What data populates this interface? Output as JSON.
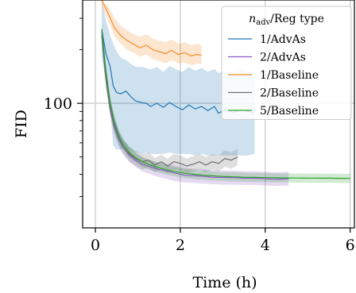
{
  "chart_data": {
    "type": "line",
    "xlabel": "Time (h)",
    "ylabel": "FID",
    "xlim": [
      -0.3,
      6.1
    ],
    "ylim": [
      20,
      380
    ],
    "yscale": "log",
    "xticks": [
      0,
      2,
      4,
      6
    ],
    "xtick_labels": [
      "0",
      "2",
      "4",
      "6"
    ],
    "yticks": [
      100
    ],
    "ytick_labels": [
      "100"
    ],
    "grid": true,
    "legend": {
      "placement": "top-right",
      "title_var": "n",
      "title_sub": "adv",
      "title_rest": "/Reg type"
    },
    "series": [
      {
        "name": "1/AdvAs",
        "color": "#1f77b4",
        "x": [
          0.15,
          0.25,
          0.35,
          0.42,
          0.5,
          0.6,
          0.72,
          0.85,
          0.95,
          1.1,
          1.2,
          1.3,
          1.45,
          1.6,
          1.75,
          1.9,
          2.05,
          2.2,
          2.35,
          2.5,
          2.65,
          2.8,
          2.9,
          3.05,
          3.25,
          3.45,
          3.6,
          3.75
        ],
        "y": [
          260,
          190,
          160,
          125,
          115,
          113,
          117,
          108,
          103,
          101,
          100,
          96,
          100,
          95,
          101,
          96,
          92,
          98,
          93,
          96,
          91,
          96,
          88,
          92,
          89,
          92,
          90,
          88
        ],
        "lower": [
          180,
          130,
          90,
          58,
          55,
          55,
          56,
          54,
          53,
          52,
          53,
          52,
          52,
          52,
          53,
          52,
          52,
          52,
          51,
          52,
          51,
          51,
          51,
          51,
          51,
          51,
          51,
          52
        ],
        "upper": [
          380,
          290,
          240,
          215,
          195,
          180,
          175,
          165,
          160,
          160,
          158,
          155,
          160,
          150,
          162,
          155,
          150,
          160,
          152,
          158,
          150,
          156,
          148,
          152,
          148,
          155,
          150,
          150
        ]
      },
      {
        "name": "2/AdvAs",
        "color": "#8c57c9",
        "x": [
          0.15,
          0.25,
          0.35,
          0.45,
          0.55,
          0.65,
          0.8,
          0.95,
          1.1,
          1.3,
          1.5,
          1.7,
          1.9,
          2.1,
          2.3,
          2.5,
          2.75,
          3.0,
          3.25,
          3.5,
          3.75,
          4.0,
          4.2,
          4.4,
          4.55
        ],
        "y": [
          250,
          140,
          95,
          75,
          64,
          57,
          51,
          48,
          45.5,
          44,
          42.5,
          41.5,
          40.5,
          39.5,
          39.3,
          39,
          38.5,
          38.4,
          38.3,
          38,
          38,
          37.8,
          37.5,
          37.6,
          37.7
        ],
        "lower": [
          220,
          125,
          86,
          68,
          58,
          52,
          47,
          44,
          41.5,
          40,
          38.5,
          37.5,
          36.5,
          36,
          35.8,
          35.5,
          35.2,
          35,
          35,
          34.8,
          34.8,
          34.6,
          34.4,
          34.5,
          34.6
        ],
        "upper": [
          290,
          160,
          108,
          84,
          71,
          63,
          56,
          52.5,
          50,
          48,
          46.5,
          45.5,
          44.5,
          43.5,
          43,
          42.8,
          42.2,
          42,
          42,
          41.6,
          41.6,
          41.3,
          41,
          41.2,
          41.3
        ]
      },
      {
        "name": "1/Baseline",
        "color": "#f28e2b",
        "x": [
          0.15,
          0.3,
          0.45,
          0.6,
          0.75,
          0.9,
          1.05,
          1.2,
          1.35,
          1.5,
          1.65,
          1.8,
          1.95,
          2.1,
          2.25,
          2.4,
          2.5
        ],
        "y": [
          380,
          320,
          265,
          240,
          225,
          215,
          205,
          212,
          200,
          195,
          190,
          198,
          188,
          192,
          185,
          188,
          186
        ],
        "lower": [
          350,
          290,
          238,
          215,
          200,
          192,
          183,
          188,
          178,
          173,
          168,
          175,
          167,
          170,
          164,
          167,
          165
        ],
        "upper": [
          380,
          352,
          300,
          272,
          256,
          245,
          236,
          244,
          230,
          225,
          220,
          228,
          216,
          220,
          212,
          216,
          212
        ]
      },
      {
        "name": "2/Baseline",
        "color": "#6e6e6e",
        "x": [
          0.15,
          0.25,
          0.35,
          0.45,
          0.55,
          0.65,
          0.8,
          0.95,
          1.1,
          1.25,
          1.4,
          1.55,
          1.7,
          1.85,
          2.0,
          2.15,
          2.3,
          2.45,
          2.6,
          2.75,
          2.9,
          3.05,
          3.2,
          3.35
        ],
        "y": [
          240,
          135,
          92,
          73,
          63,
          57,
          52,
          49,
          47,
          48,
          45,
          47,
          44.5,
          47,
          46,
          44.5,
          45.5,
          47,
          45,
          47,
          46,
          49,
          48,
          50
        ],
        "lower": [
          215,
          122,
          84,
          67,
          58,
          52,
          47,
          44.5,
          42.5,
          43.5,
          41,
          42.5,
          40.5,
          42.5,
          41.5,
          40.5,
          41.5,
          42.5,
          41,
          42.5,
          41.5,
          44,
          43,
          45
        ],
        "upper": [
          270,
          150,
          102,
          81,
          69,
          63,
          57,
          54,
          52,
          53,
          49.5,
          51.5,
          49,
          52,
          51,
          49,
          50.5,
          52,
          50,
          52,
          51,
          54.5,
          53,
          55.5
        ]
      },
      {
        "name": "5/Baseline",
        "color": "#2ca02c",
        "x": [
          0.15,
          0.25,
          0.35,
          0.45,
          0.55,
          0.65,
          0.8,
          0.95,
          1.1,
          1.3,
          1.5,
          1.7,
          1.9,
          2.1,
          2.3,
          2.5,
          2.75,
          3.0,
          3.25,
          3.5,
          3.75,
          4.0,
          4.25,
          4.5,
          4.75,
          5.0,
          5.25,
          5.5,
          5.75,
          6.0
        ],
        "y": [
          260,
          150,
          100,
          78,
          66,
          59,
          53,
          49.5,
          47,
          45,
          43.5,
          42.2,
          41.3,
          40.5,
          40,
          39.6,
          39.2,
          38.9,
          38.7,
          38.5,
          38.4,
          38.3,
          38.2,
          38.15,
          38.1,
          38.05,
          38,
          38,
          37.95,
          37.9
        ],
        "lower": [
          235,
          137,
          92,
          72,
          61,
          55,
          49.5,
          46.5,
          44,
          42.2,
          40.8,
          39.7,
          38.8,
          38.1,
          37.6,
          37.3,
          36.9,
          36.6,
          36.4,
          36.3,
          36.2,
          36.1,
          36,
          35.95,
          35.9,
          35.85,
          35.8,
          35.8,
          35.75,
          35.7
        ],
        "upper": [
          285,
          163,
          108,
          84,
          71,
          63,
          57,
          53,
          50,
          47.8,
          46.2,
          44.8,
          43.8,
          43,
          42.4,
          42,
          41.5,
          41.2,
          41,
          40.8,
          40.7,
          40.6,
          40.5,
          40.45,
          40.4,
          40.35,
          40.3,
          40.3,
          40.25,
          40.2
        ]
      }
    ]
  }
}
